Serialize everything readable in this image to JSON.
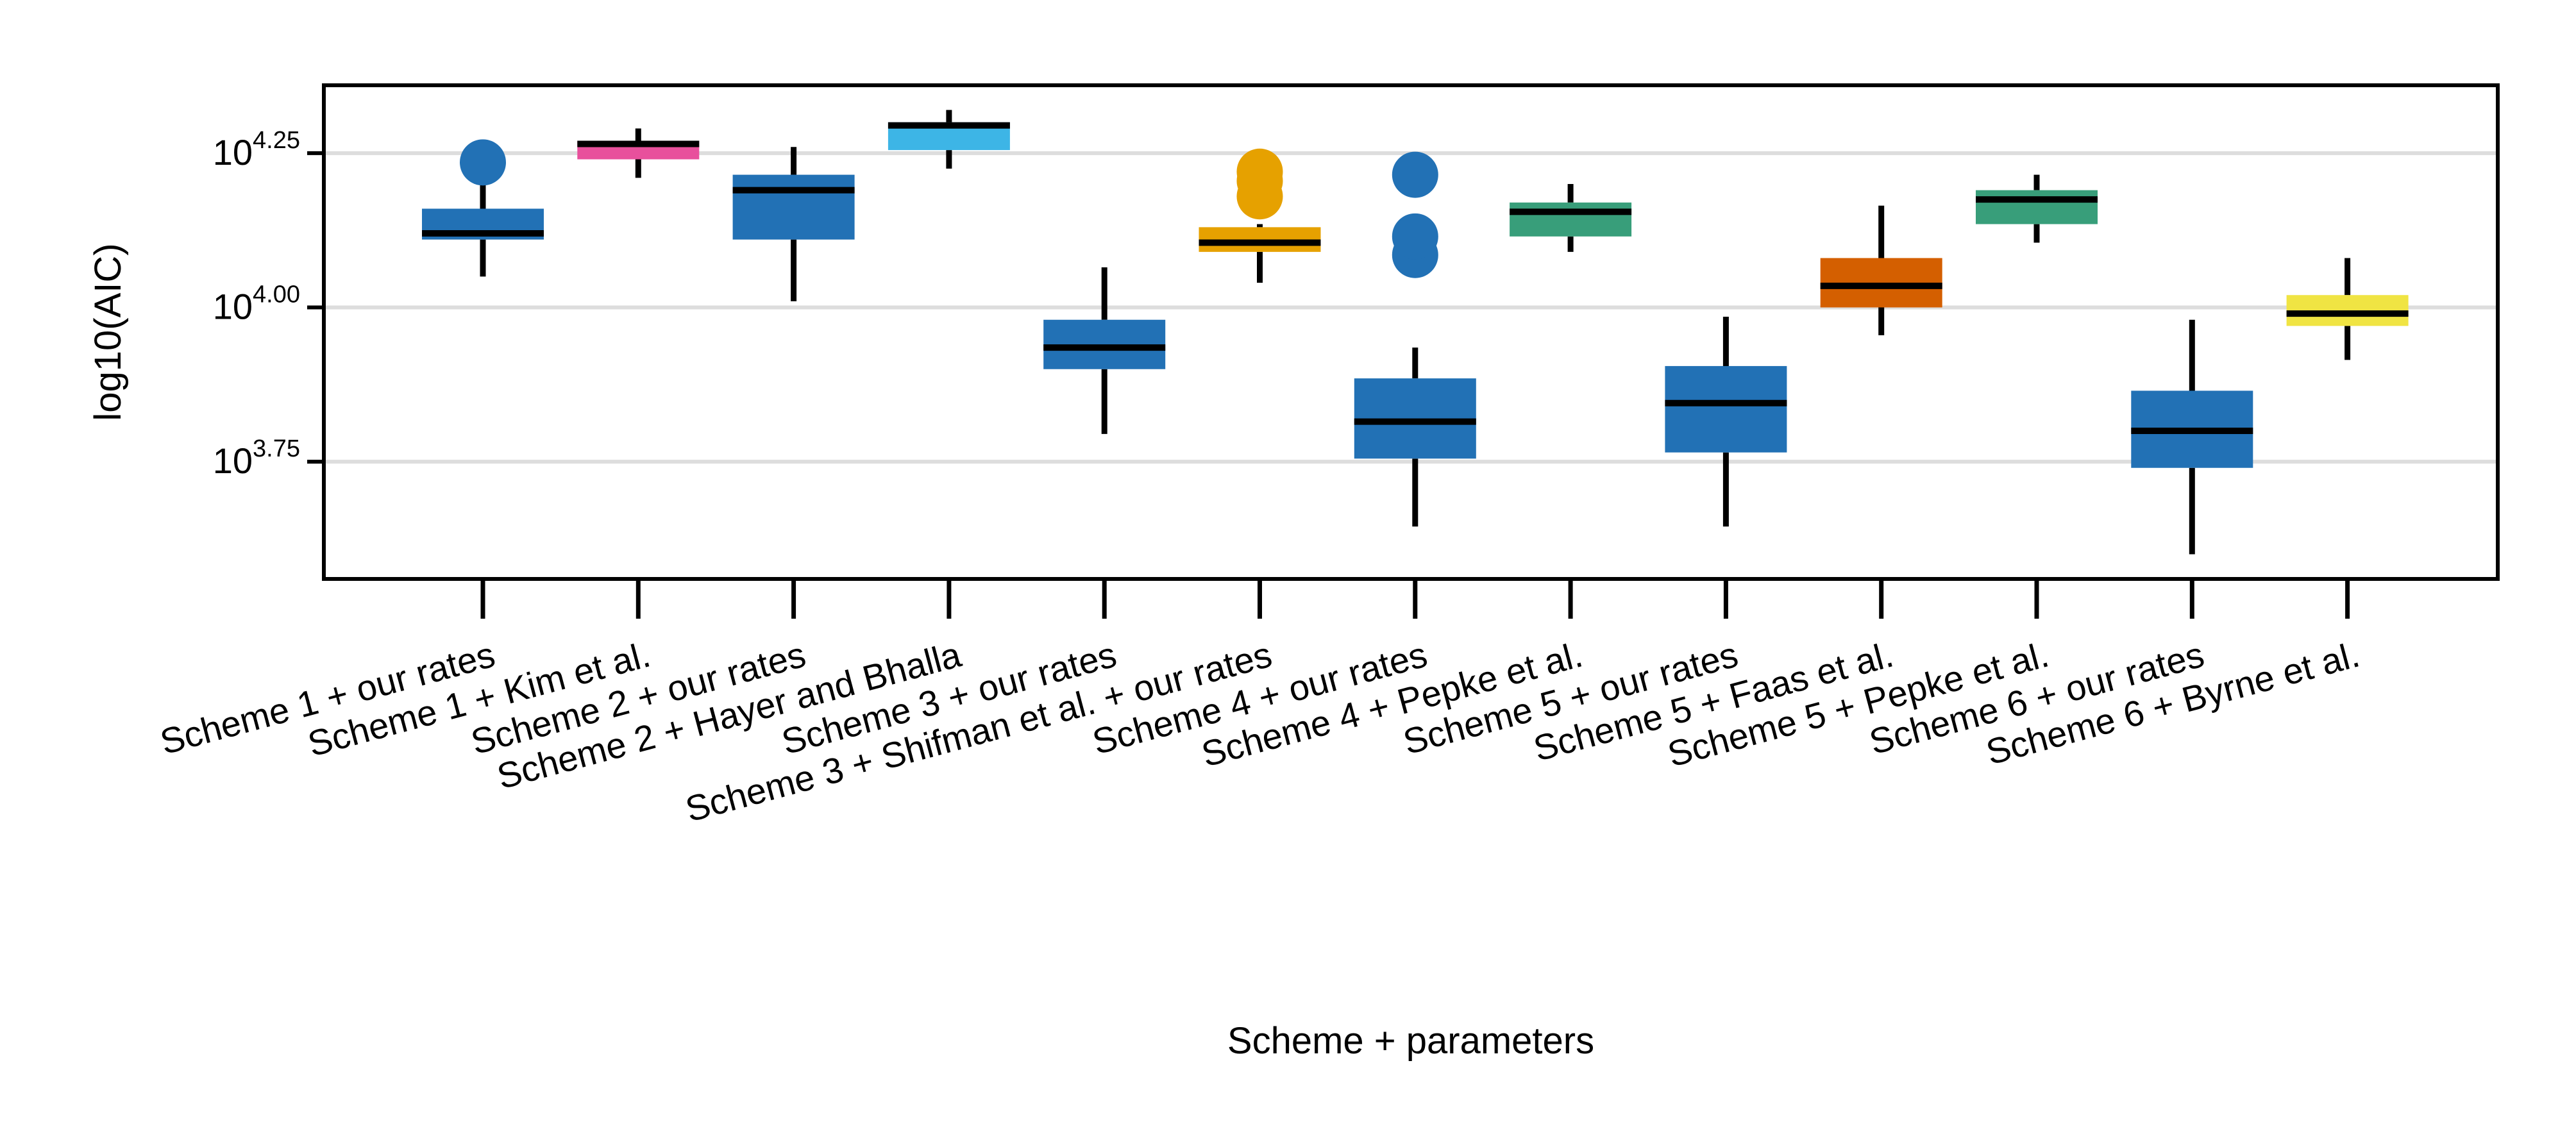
{
  "chart_data": {
    "type": "box",
    "xlabel": "Scheme + parameters",
    "ylabel": "log10(AIC)",
    "ylim": [
      3.56,
      4.36
    ],
    "yticks": [
      {
        "value": 3.75,
        "base": "10",
        "exp": "3.75"
      },
      {
        "value": 4.0,
        "base": "10",
        "exp": "4.00"
      },
      {
        "value": 4.25,
        "base": "10",
        "exp": "4.25"
      }
    ],
    "grid": "horizontal",
    "categories": [
      "Scheme 1 + our rates",
      "Scheme 1 + Kim et al.",
      "Scheme 2 + our rates",
      "Scheme 2 + Hayer and Bhalla",
      "Scheme 3 + our rates",
      "Scheme 3 + Shifman et al. + our rates",
      "Scheme 4 + our rates",
      "Scheme 4 + Pepke et al.",
      "Scheme 5 + our rates",
      "Scheme 5 + Faas et al.",
      "Scheme 5 + Pepke et al.",
      "Scheme 6 + our rates",
      "Scheme 6 + Byrne et al."
    ],
    "boxes": [
      {
        "whisker_low": 4.05,
        "q1": 4.11,
        "median": 4.12,
        "q3": 4.16,
        "whisker_high": 4.21,
        "outliers": [
          4.235
        ],
        "color": "#2271b5"
      },
      {
        "whisker_low": 4.21,
        "q1": 4.24,
        "median": 4.265,
        "q3": 4.27,
        "whisker_high": 4.29,
        "outliers": [],
        "color": "#e8509c"
      },
      {
        "whisker_low": 4.01,
        "q1": 4.11,
        "median": 4.19,
        "q3": 4.215,
        "whisker_high": 4.26,
        "outliers": [],
        "color": "#2271b5"
      },
      {
        "whisker_low": 4.225,
        "q1": 4.255,
        "median": 4.295,
        "q3": 4.3,
        "whisker_high": 4.32,
        "outliers": [],
        "color": "#3db5e6"
      },
      {
        "whisker_low": 3.795,
        "q1": 3.9,
        "median": 3.935,
        "q3": 3.98,
        "whisker_high": 4.065,
        "outliers": [],
        "color": "#2271b5"
      },
      {
        "whisker_low": 4.04,
        "q1": 4.09,
        "median": 4.105,
        "q3": 4.13,
        "whisker_high": 4.135,
        "outliers": [
          4.18,
          4.205,
          4.22
        ],
        "color": "#e6a100"
      },
      {
        "whisker_low": 3.645,
        "q1": 3.755,
        "median": 3.815,
        "q3": 3.885,
        "whisker_high": 3.935,
        "outliers": [
          4.085,
          4.115,
          4.215
        ],
        "color": "#2271b5"
      },
      {
        "whisker_low": 4.09,
        "q1": 4.115,
        "median": 4.155,
        "q3": 4.17,
        "whisker_high": 4.2,
        "outliers": [],
        "color": "#389e7a"
      },
      {
        "whisker_low": 3.645,
        "q1": 3.765,
        "median": 3.845,
        "q3": 3.905,
        "whisker_high": 3.985,
        "outliers": [],
        "color": "#2271b5"
      },
      {
        "whisker_low": 3.955,
        "q1": 4.0,
        "median": 4.035,
        "q3": 4.08,
        "whisker_high": 4.165,
        "outliers": [],
        "color": "#d45f00"
      },
      {
        "whisker_low": 4.105,
        "q1": 4.135,
        "median": 4.175,
        "q3": 4.19,
        "whisker_high": 4.215,
        "outliers": [],
        "color": "#389e7a"
      },
      {
        "whisker_low": 3.6,
        "q1": 3.74,
        "median": 3.8,
        "q3": 3.865,
        "whisker_high": 3.98,
        "outliers": [],
        "color": "#2271b5"
      },
      {
        "whisker_low": 3.915,
        "q1": 3.97,
        "median": 3.99,
        "q3": 4.02,
        "whisker_high": 4.08,
        "outliers": [],
        "color": "#f0e443"
      }
    ]
  }
}
